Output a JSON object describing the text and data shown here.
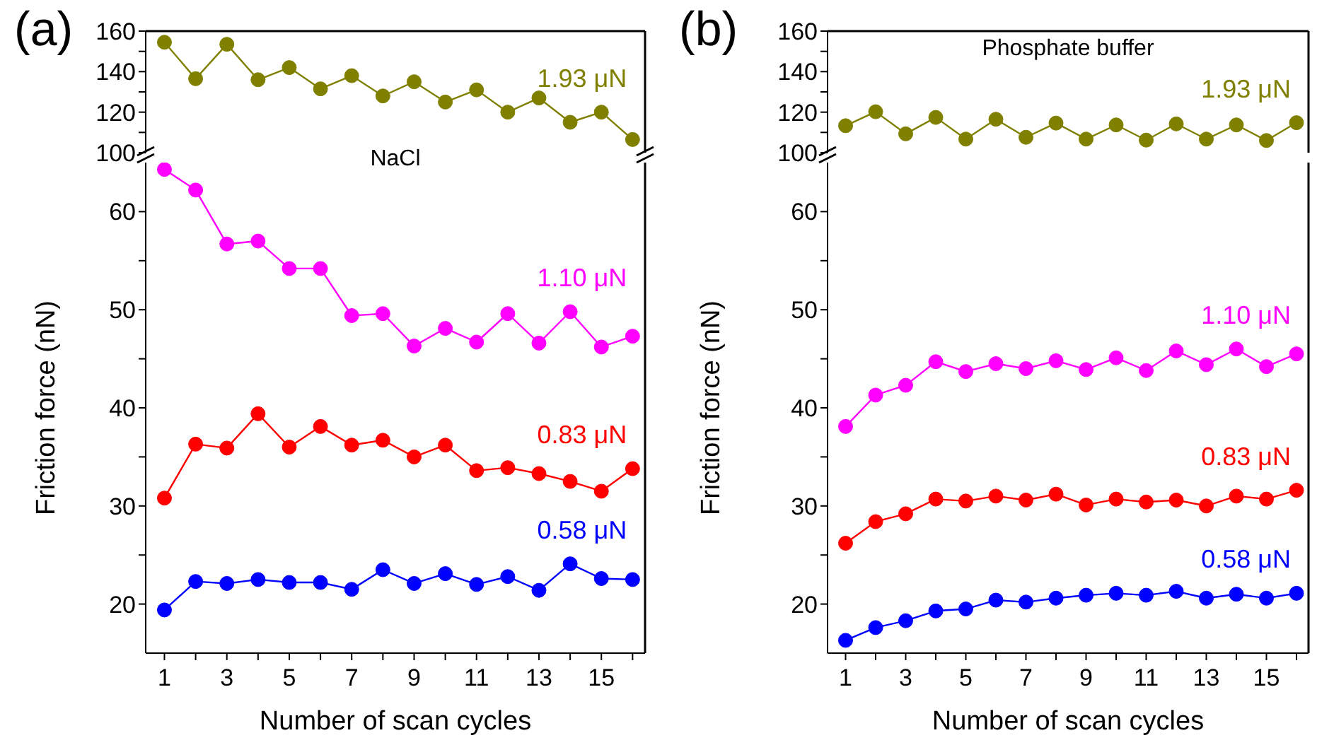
{
  "chart_data": [
    {
      "type": "line",
      "title": "(a)",
      "annotations": [
        "NaCl"
      ],
      "x": [
        1,
        2,
        3,
        4,
        5,
        6,
        7,
        8,
        9,
        10,
        11,
        12,
        13,
        14,
        15,
        16
      ],
      "xlim": [
        0.4,
        16.4
      ],
      "ylim": [
        100,
        160
      ],
      "yticks": [
        100,
        {
          "value": 110,
          "label": null
        },
        120,
        {
          "value": 130,
          "label": null
        },
        140,
        {
          "value": 150,
          "label": null
        },
        160
      ],
      "tick_labels": "y",
      "marker": "circle",
      "legend": false,
      "grid": false,
      "series": [
        {
          "name": "1.93 μN",
          "color": "#808000",
          "values": [
            154.5,
            136.5,
            153.5,
            136,
            142,
            131.5,
            138,
            128,
            135,
            125,
            131,
            120,
            127,
            115,
            120,
            106.5
          ]
        }
      ]
    },
    {
      "type": "line",
      "x": [
        1,
        2,
        3,
        4,
        5,
        6,
        7,
        8,
        9,
        10,
        11,
        12,
        13,
        14,
        15,
        16
      ],
      "xlabel": "Number of scan cycles",
      "ylabel": "Friction force (nN)",
      "xlim": [
        0.4,
        16.4
      ],
      "xticks": [
        1,
        {
          "value": 2,
          "label": null
        },
        3,
        {
          "value": 4,
          "label": null
        },
        5,
        {
          "value": 6,
          "label": null
        },
        7,
        {
          "value": 8,
          "label": null
        },
        9,
        {
          "value": 10,
          "label": null
        },
        11,
        {
          "value": 12,
          "label": null
        },
        13,
        {
          "value": 14,
          "label": null
        },
        15,
        {
          "value": 16,
          "label": null
        }
      ],
      "ylim": [
        15,
        65
      ],
      "yticks": [
        20,
        {
          "value": 25,
          "label": null
        },
        30,
        {
          "value": 35,
          "label": null
        },
        40,
        {
          "value": 45,
          "label": null
        },
        50,
        {
          "value": 55,
          "label": null
        },
        60
      ],
      "marker": "circle",
      "legend": false,
      "grid": false,
      "series": [
        {
          "name": "1.10 μN",
          "color": "#ff00ff",
          "values": [
            64.3,
            62.2,
            56.7,
            57.0,
            54.2,
            54.2,
            49.4,
            49.6,
            46.3,
            48.1,
            46.7,
            49.6,
            46.6,
            49.8,
            46.2,
            47.3
          ]
        },
        {
          "name": "0.83 μN",
          "color": "#ff0000",
          "values": [
            30.8,
            36.3,
            35.9,
            39.4,
            36.0,
            38.1,
            36.2,
            36.7,
            35.0,
            36.2,
            33.6,
            33.9,
            33.3,
            32.5,
            31.5,
            33.8
          ]
        },
        {
          "name": "0.58 μN",
          "color": "#0000ff",
          "values": [
            19.4,
            22.3,
            22.1,
            22.5,
            22.2,
            22.2,
            21.5,
            23.5,
            22.1,
            23.1,
            22.0,
            22.8,
            21.4,
            24.1,
            22.6,
            22.5
          ]
        }
      ]
    },
    {
      "type": "line",
      "title": "(b)",
      "annotations": [
        "Phosphate buffer"
      ],
      "x": [
        1,
        2,
        3,
        4,
        5,
        6,
        7,
        8,
        9,
        10,
        11,
        12,
        13,
        14,
        15,
        16
      ],
      "xlim": [
        0.4,
        16.4
      ],
      "ylim": [
        100,
        160
      ],
      "yticks": [
        100,
        {
          "value": 110,
          "label": null
        },
        120,
        {
          "value": 130,
          "label": null
        },
        140,
        {
          "value": 150,
          "label": null
        },
        160
      ],
      "tick_labels": "y",
      "marker": "circle",
      "legend": false,
      "grid": false,
      "series": [
        {
          "name": "1.93 μN",
          "color": "#808000",
          "values": [
            113.3,
            120.2,
            109.3,
            117.4,
            106.7,
            116.5,
            107.6,
            114.6,
            106.7,
            113.7,
            106.2,
            114.2,
            106.7,
            113.7,
            106,
            114.8
          ]
        }
      ]
    },
    {
      "type": "line",
      "x": [
        1,
        2,
        3,
        4,
        5,
        6,
        7,
        8,
        9,
        10,
        11,
        12,
        13,
        14,
        15,
        16
      ],
      "xlabel": "Number of scan cycles",
      "ylabel": "Friction force (nN)",
      "xlim": [
        0.4,
        16.4
      ],
      "xticks": [
        1,
        {
          "value": 2,
          "label": null
        },
        3,
        {
          "value": 4,
          "label": null
        },
        5,
        {
          "value": 6,
          "label": null
        },
        7,
        {
          "value": 8,
          "label": null
        },
        9,
        {
          "value": 10,
          "label": null
        },
        11,
        {
          "value": 12,
          "label": null
        },
        13,
        {
          "value": 14,
          "label": null
        },
        15,
        {
          "value": 16,
          "label": null
        }
      ],
      "ylim": [
        15,
        65
      ],
      "yticks": [
        20,
        {
          "value": 25,
          "label": null
        },
        30,
        {
          "value": 35,
          "label": null
        },
        40,
        {
          "value": 45,
          "label": null
        },
        50,
        {
          "value": 55,
          "label": null
        },
        60
      ],
      "marker": "circle",
      "legend": false,
      "grid": false,
      "series": [
        {
          "name": "1.10 μN",
          "color": "#ff00ff",
          "values": [
            38.1,
            41.3,
            42.3,
            44.7,
            43.7,
            44.5,
            44.0,
            44.8,
            43.9,
            45.1,
            43.8,
            45.8,
            44.4,
            46.0,
            44.2,
            45.5
          ]
        },
        {
          "name": "0.83 μN",
          "color": "#ff0000",
          "values": [
            26.2,
            28.4,
            29.2,
            30.7,
            30.5,
            31.0,
            30.6,
            31.2,
            30.1,
            30.7,
            30.4,
            30.6,
            30.0,
            31.0,
            30.7,
            31.6
          ]
        },
        {
          "name": "0.58 μN",
          "color": "#0000ff",
          "values": [
            16.3,
            17.6,
            18.3,
            19.3,
            19.5,
            20.4,
            20.2,
            20.6,
            20.9,
            21.1,
            20.9,
            21.3,
            20.6,
            21.0,
            20.6,
            21.1
          ]
        }
      ]
    }
  ]
}
